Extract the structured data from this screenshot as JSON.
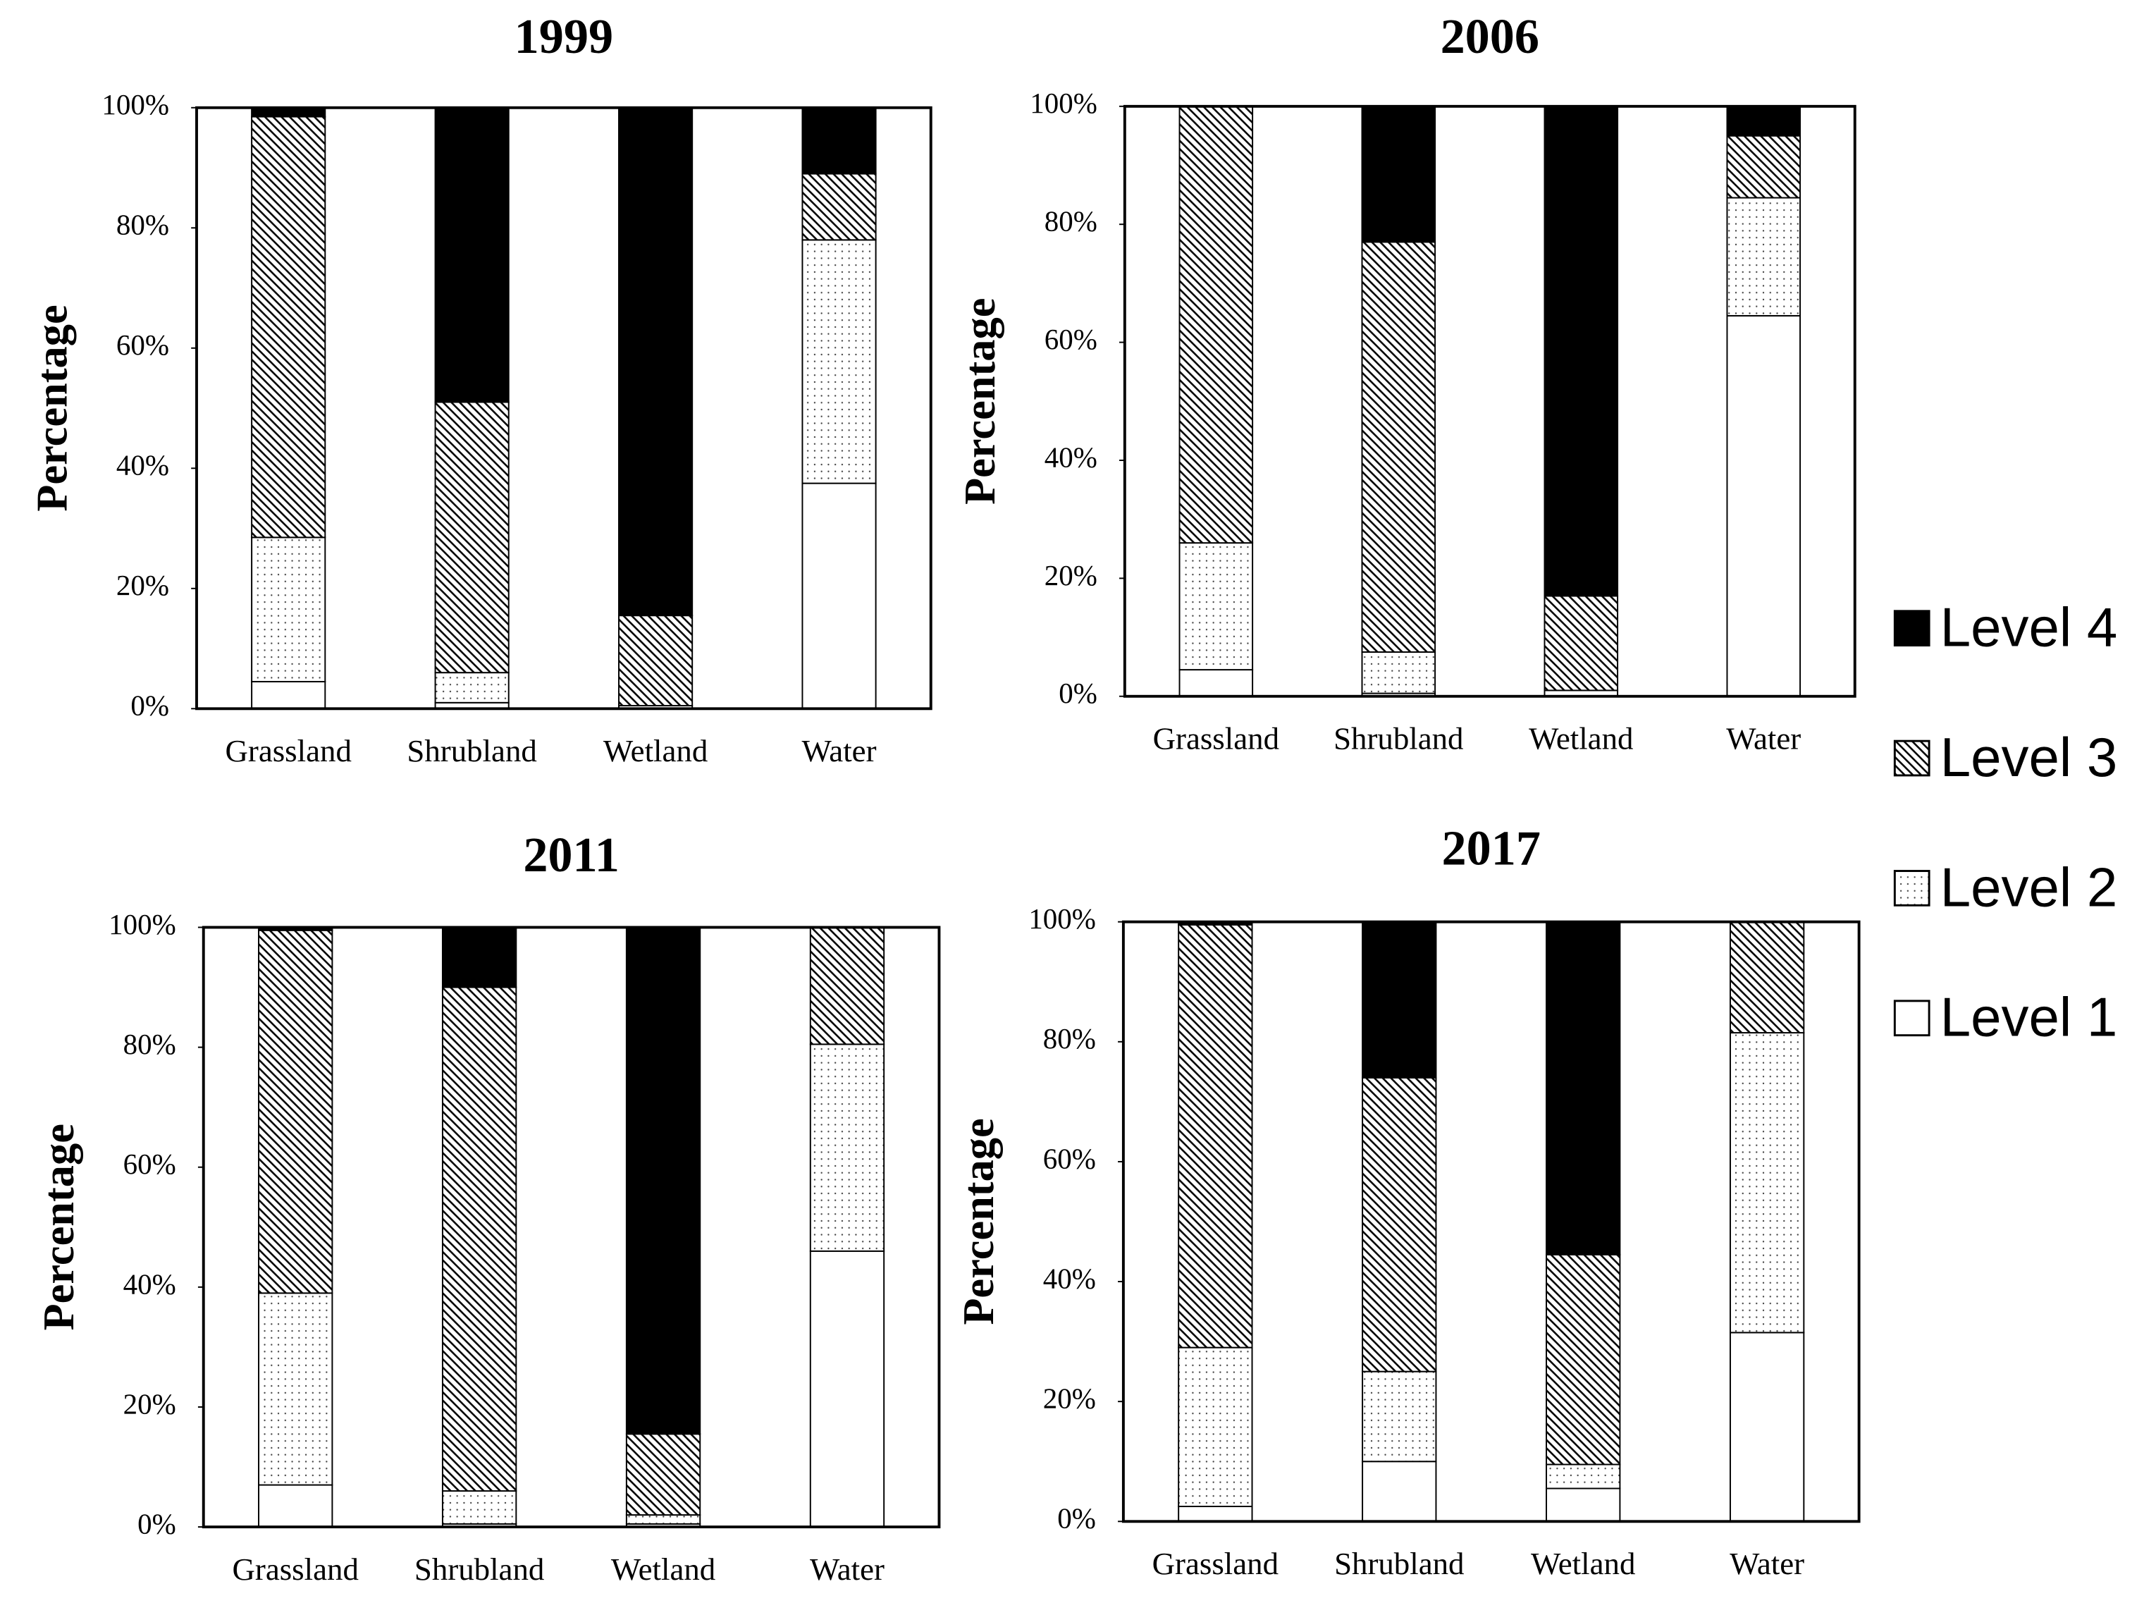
{
  "chart_data": [
    {
      "type": "bar",
      "stacked": true,
      "title": "1999",
      "y_label": "Percentage",
      "categories": [
        "Grassland",
        "Shrubland",
        "Wetland",
        "Water"
      ],
      "ylim": [
        0,
        100
      ],
      "yticks": [
        {
          "value": 0,
          "label": "0%"
        },
        {
          "value": 20,
          "label": "20%"
        },
        {
          "value": 40,
          "label": "40%"
        },
        {
          "value": 60,
          "label": "60%"
        },
        {
          "value": 80,
          "label": "80%"
        },
        {
          "value": 100,
          "label": "100%"
        }
      ],
      "legend": "right",
      "series": [
        {
          "name": "Level 1",
          "color": "#000000",
          "pattern": "none",
          "values": [
            4.5,
            1,
            0.5,
            37.5
          ]
        },
        {
          "name": "Level 2",
          "color": "#000000",
          "pattern": "dots",
          "values": [
            24,
            5,
            0,
            40.5
          ]
        },
        {
          "name": "Level 3",
          "color": "#000000",
          "pattern": "hatch",
          "values": [
            70,
            45,
            15,
            11
          ]
        },
        {
          "name": "Level 4",
          "color": "#000000",
          "pattern": "solid",
          "values": [
            1.5,
            49,
            84.5,
            11
          ]
        }
      ]
    },
    {
      "type": "bar",
      "stacked": true,
      "title": "2006",
      "y_label": "Percentage",
      "categories": [
        "Grassland",
        "Shrubland",
        "Wetland",
        "Water"
      ],
      "ylim": [
        0,
        100
      ],
      "yticks": [
        {
          "value": 0,
          "label": "0%"
        },
        {
          "value": 20,
          "label": "20%"
        },
        {
          "value": 40,
          "label": "40%"
        },
        {
          "value": 60,
          "label": "60%"
        },
        {
          "value": 80,
          "label": "80%"
        },
        {
          "value": 100,
          "label": "100%"
        }
      ],
      "series": [
        {
          "color": "#000000",
          "pattern": "none",
          "values": [
            4.5,
            0.5,
            1,
            64.5
          ]
        },
        {
          "color": "#000000",
          "pattern": "dots",
          "values": [
            21.5,
            7,
            0,
            20
          ]
        },
        {
          "color": "#000000",
          "pattern": "hatch",
          "values": [
            74,
            69.5,
            16,
            10.5
          ]
        },
        {
          "color": "#000000",
          "pattern": "solid",
          "values": [
            0,
            23,
            83,
            5
          ]
        }
      ]
    },
    {
      "type": "bar",
      "stacked": true,
      "title": "2011",
      "y_label": "Percentage",
      "categories": [
        "Grassland",
        "Shrubland",
        "Wetland",
        "Water"
      ],
      "ylim": [
        0,
        100
      ],
      "yticks": [
        {
          "value": 0,
          "label": "0%"
        },
        {
          "value": 20,
          "label": "20%"
        },
        {
          "value": 40,
          "label": "40%"
        },
        {
          "value": 60,
          "label": "60%"
        },
        {
          "value": 80,
          "label": "80%"
        },
        {
          "value": 100,
          "label": "100%"
        }
      ],
      "series": [
        {
          "color": "#000000",
          "pattern": "none",
          "values": [
            7,
            0.5,
            0.5,
            46
          ]
        },
        {
          "color": "#000000",
          "pattern": "dots",
          "values": [
            32,
            5.5,
            1.5,
            34.5
          ]
        },
        {
          "color": "#000000",
          "pattern": "hatch",
          "values": [
            60.5,
            84,
            13.5,
            19.5
          ]
        },
        {
          "color": "#000000",
          "pattern": "solid",
          "values": [
            0.5,
            10,
            84.5,
            0
          ]
        }
      ]
    },
    {
      "type": "bar",
      "stacked": true,
      "title": "2017",
      "y_label": "Percentage",
      "categories": [
        "Grassland",
        "Shrubland",
        "Wetland",
        "Water"
      ],
      "ylim": [
        0,
        100
      ],
      "yticks": [
        {
          "value": 0,
          "label": "0%"
        },
        {
          "value": 20,
          "label": "20%"
        },
        {
          "value": 40,
          "label": "40%"
        },
        {
          "value": 60,
          "label": "60%"
        },
        {
          "value": 80,
          "label": "80%"
        },
        {
          "value": 100,
          "label": "100%"
        }
      ],
      "series": [
        {
          "color": "#000000",
          "pattern": "none",
          "values": [
            2.5,
            10,
            5.5,
            31.5
          ]
        },
        {
          "color": "#000000",
          "pattern": "dots",
          "values": [
            26.5,
            15,
            4,
            50
          ]
        },
        {
          "color": "#000000",
          "pattern": "hatch",
          "values": [
            70.5,
            49,
            35,
            18.5
          ]
        },
        {
          "color": "#000000",
          "pattern": "solid",
          "values": [
            0.5,
            26,
            55.5,
            0
          ]
        }
      ]
    }
  ]
}
